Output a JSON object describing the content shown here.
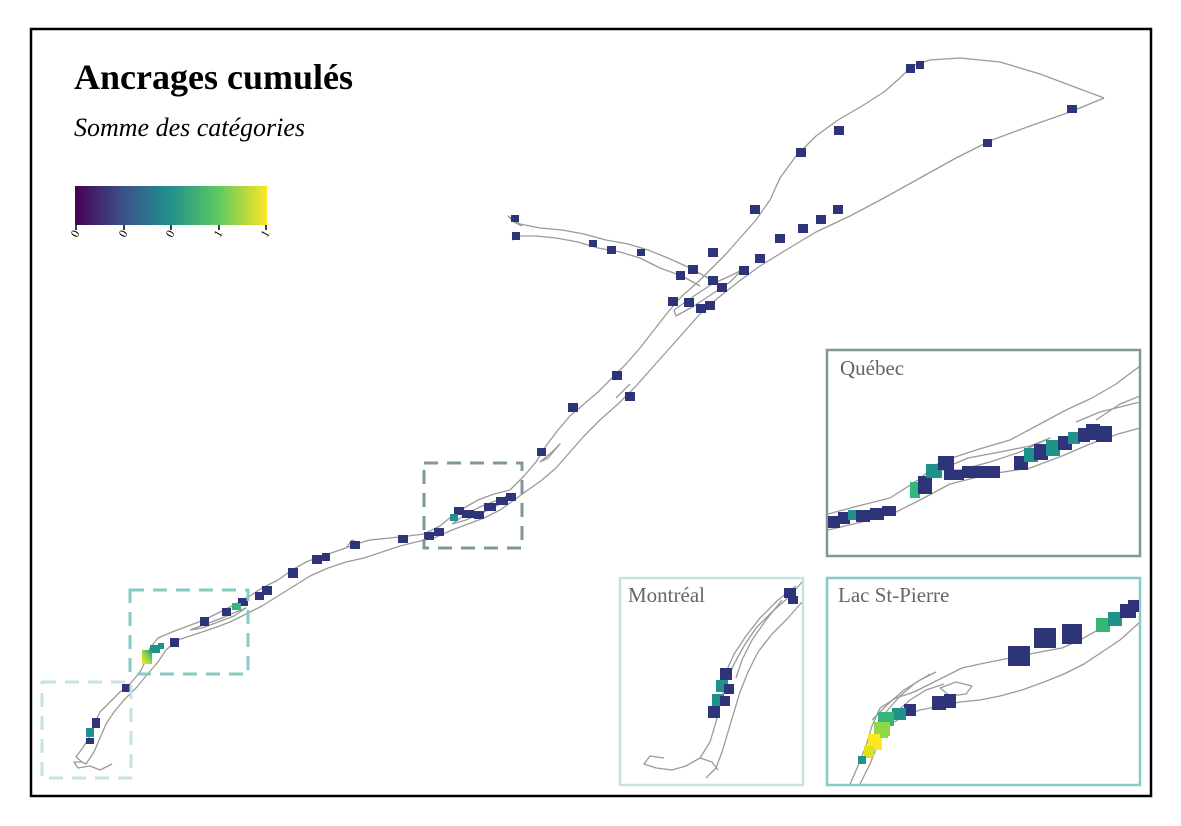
{
  "map": {
    "title": "Ancrages cumulés",
    "subtitle": "Somme des catégories",
    "legend": {
      "type": "continuous",
      "palette": "viridis",
      "tick_labels": [
        "0",
        "0",
        "0",
        "1",
        "1"
      ],
      "colors": [
        "#440154",
        "#3b528b",
        "#21918c",
        "#5ec962",
        "#fde725"
      ]
    },
    "insets": [
      {
        "label": "Québec",
        "frame_color": "#7f9996"
      },
      {
        "label": "Montréal",
        "frame_color": "#c4e3e3"
      },
      {
        "label": "Lac St-Pierre",
        "frame_color": "#86ccc4"
      }
    ],
    "extent_boxes": [
      {
        "inset": "Québec",
        "color": "#7f9996"
      },
      {
        "inset": "Lac St-Pierre",
        "color": "#86ccc4"
      },
      {
        "inset": "Montréal",
        "color": "#c4e3e3"
      }
    ],
    "colors": {
      "cell_low": "#2d3477",
      "cell_mid": "#21918c",
      "cell_high": "#fde725",
      "shoreline": "#9a9a9a",
      "frame": "#000000"
    }
  }
}
